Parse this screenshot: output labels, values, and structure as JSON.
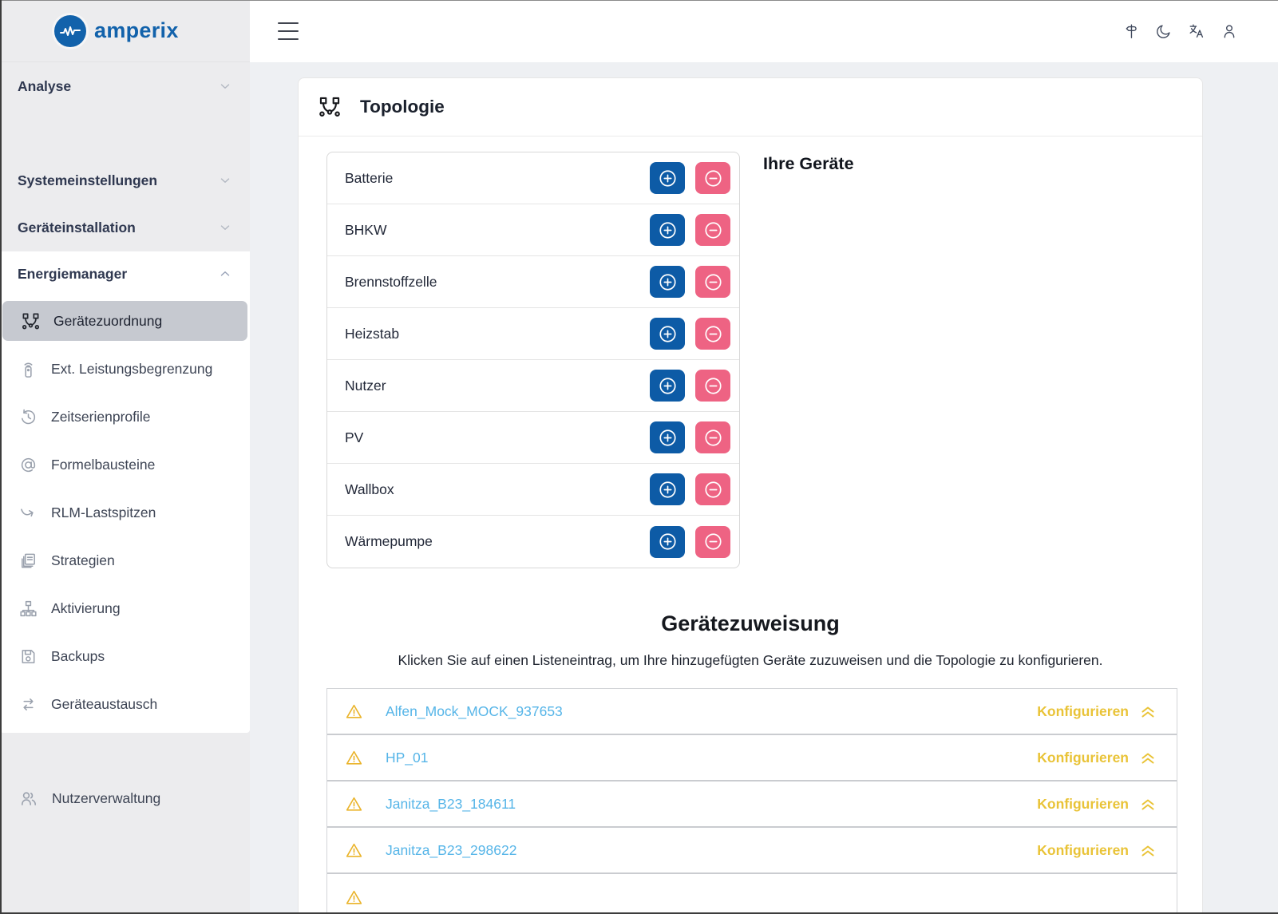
{
  "brand": {
    "name": "amperix"
  },
  "topbar": {
    "icons": [
      {
        "name": "signpost-icon"
      },
      {
        "name": "dark-mode-moon-icon"
      },
      {
        "name": "language-translate-icon"
      },
      {
        "name": "user-profile-icon"
      }
    ]
  },
  "sidebar": {
    "sections": [
      {
        "label": "Analyse",
        "chevron": "down"
      },
      {
        "label": "Systemeinstellungen",
        "chevron": "down"
      },
      {
        "label": "Geräteinstallation",
        "chevron": "down"
      },
      {
        "label": "Energiemanager",
        "chevron": "up"
      }
    ],
    "energiemanager_items": [
      {
        "label": "Gerätezuordnung",
        "icon": "topology",
        "active": true
      },
      {
        "label": "Ext. Leistungsbegrenzung",
        "icon": "remote",
        "active": false
      },
      {
        "label": "Zeitserienprofile",
        "icon": "timer",
        "active": false
      },
      {
        "label": "Formelbausteine",
        "icon": "at",
        "active": false
      },
      {
        "label": "RLM-Lastspitzen",
        "icon": "trend",
        "active": false
      },
      {
        "label": "Strategien",
        "icon": "layers",
        "active": false
      },
      {
        "label": "Aktivierung",
        "icon": "sitemap",
        "active": false
      },
      {
        "label": "Backups",
        "icon": "floppy",
        "active": false
      },
      {
        "label": "Geräteaustausch",
        "icon": "swap",
        "active": false
      }
    ],
    "bottom_items": [
      {
        "label": "Nutzerverwaltung",
        "icon": "users"
      }
    ]
  },
  "topology": {
    "title": "Topologie",
    "your_devices_title": "Ihre Geräte",
    "device_types": [
      "Batterie",
      "BHKW",
      "Brennstoffzelle",
      "Heizstab",
      "Nutzer",
      "PV",
      "Wallbox",
      "Wärmepumpe"
    ]
  },
  "assignment": {
    "title": "Gerätezuweisung",
    "subtitle": "Klicken Sie auf einen Listeneintrag, um Ihre hinzugefügten Geräte zuzuweisen und die Topologie zu konfigurieren.",
    "configure_label": "Konfigurieren",
    "devices": [
      "Alfen_Mock_MOCK_937653",
      "HP_01",
      "Janitza_B23_184611",
      "Janitza_B23_298622"
    ],
    "partial_fifth_row_visible": true
  },
  "colors": {
    "brand_blue": "#1262ab",
    "add_button_blue": "#0d5ba6",
    "remove_button_pink": "#ee6383",
    "device_link_blue": "#56b5e8",
    "configure_gold": "#e9c337",
    "warning_yellow": "#eab329",
    "sidebar_gray": "#ececee",
    "active_item_gray": "#c6c9d0",
    "content_bg": "#eef0f3"
  }
}
